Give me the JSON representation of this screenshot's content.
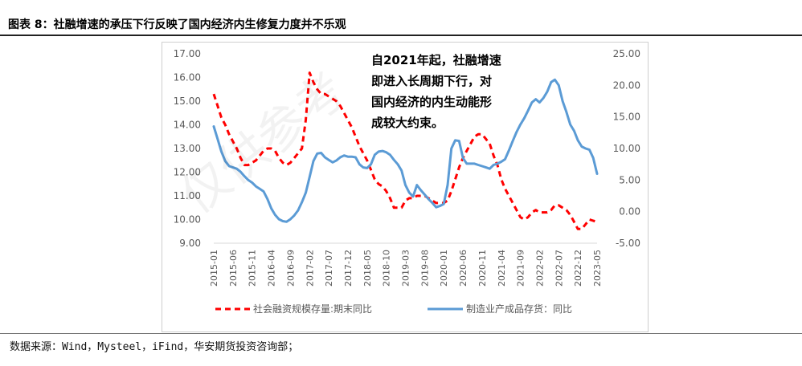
{
  "figure": {
    "title": "图表 8：社融增速的承压下行反映了国内经济内生修复力度并不乐观",
    "source": "数据来源：Wind，Mysteel，iFind，华安期货投资咨询部；",
    "watermark": "仅供参考"
  },
  "colors": {
    "series1": "#ff0000",
    "series2": "#5b9bd5",
    "axis_text": "#595959",
    "axis_line": "#d9d9d9"
  },
  "chart_data": {
    "type": "line",
    "title": "",
    "xlabel": "",
    "annotation": [
      "自2021年起，社融增速",
      "即进入长周期下行，对",
      "国内经济的内生动能形",
      "成较大约束。"
    ],
    "x_ticks": [
      "2015-01",
      "2015-06",
      "2015-11",
      "2016-04",
      "2016-09",
      "2017-02",
      "2017-07",
      "2017-12",
      "2018-05",
      "2018-10",
      "2019-03",
      "2019-08",
      "2020-01",
      "2020-06",
      "2020-11",
      "2021-04",
      "2021-09",
      "2022-02",
      "2022-07",
      "2022-12",
      "2023-05"
    ],
    "y_left": {
      "min": 9,
      "max": 17,
      "step": 1,
      "tick_labels": [
        "17.00",
        "16.00",
        "15.00",
        "14.00",
        "13.00",
        "12.00",
        "11.00",
        "10.00",
        "9.00"
      ]
    },
    "y_right": {
      "min": -5,
      "max": 25,
      "step": 5,
      "tick_labels": [
        "25.00",
        "20.00",
        "15.00",
        "10.00",
        "5.00",
        "0.00",
        "-5.00"
      ]
    },
    "legend_position": "bottom",
    "series": [
      {
        "name": "社会融资规模存量:期末同比",
        "axis": "left",
        "style": "dashed",
        "points": [
          [
            "2015-01",
            15.3
          ],
          [
            "2015-02",
            14.8
          ],
          [
            "2015-03",
            14.3
          ],
          [
            "2015-04",
            14.0
          ],
          [
            "2015-05",
            13.6
          ],
          [
            "2015-06",
            13.3
          ],
          [
            "2015-07",
            13.0
          ],
          [
            "2015-08",
            12.6
          ],
          [
            "2015-09",
            12.3
          ],
          [
            "2015-10",
            12.3
          ],
          [
            "2015-11",
            12.4
          ],
          [
            "2015-12",
            12.5
          ],
          [
            "2016-01",
            12.7
          ],
          [
            "2016-02",
            12.9
          ],
          [
            "2016-03",
            13.0
          ],
          [
            "2016-04",
            13.0
          ],
          [
            "2016-05",
            12.9
          ],
          [
            "2016-06",
            12.6
          ],
          [
            "2016-07",
            12.4
          ],
          [
            "2016-08",
            12.3
          ],
          [
            "2016-09",
            12.4
          ],
          [
            "2016-10",
            12.6
          ],
          [
            "2016-11",
            12.8
          ],
          [
            "2016-12",
            13.0
          ],
          [
            "2017-01",
            14.2
          ],
          [
            "2017-02",
            16.2
          ],
          [
            "2017-03",
            15.8
          ],
          [
            "2017-04",
            15.5
          ],
          [
            "2017-05",
            15.3
          ],
          [
            "2017-06",
            15.3
          ],
          [
            "2017-07",
            15.2
          ],
          [
            "2017-08",
            15.1
          ],
          [
            "2017-09",
            15.0
          ],
          [
            "2017-10",
            14.8
          ],
          [
            "2017-11",
            14.5
          ],
          [
            "2017-12",
            14.2
          ],
          [
            "2018-01",
            13.9
          ],
          [
            "2018-02",
            13.5
          ],
          [
            "2018-03",
            13.1
          ],
          [
            "2018-04",
            12.8
          ],
          [
            "2018-05",
            12.5
          ],
          [
            "2018-06",
            12.1
          ],
          [
            "2018-07",
            11.7
          ],
          [
            "2018-08",
            11.5
          ],
          [
            "2018-09",
            11.4
          ],
          [
            "2018-10",
            11.2
          ],
          [
            "2018-11",
            10.9
          ],
          [
            "2018-12",
            10.5
          ],
          [
            "2019-01",
            10.5
          ],
          [
            "2019-02",
            10.5
          ],
          [
            "2019-03",
            10.8
          ],
          [
            "2019-04",
            10.9
          ],
          [
            "2019-05",
            10.9
          ],
          [
            "2019-06",
            11.0
          ],
          [
            "2019-07",
            11.0
          ],
          [
            "2019-08",
            11.0
          ],
          [
            "2019-09",
            10.9
          ],
          [
            "2019-10",
            10.8
          ],
          [
            "2019-11",
            10.7
          ],
          [
            "2019-12",
            10.7
          ],
          [
            "2020-01",
            10.7
          ],
          [
            "2020-02",
            10.8
          ],
          [
            "2020-03",
            11.2
          ],
          [
            "2020-04",
            11.7
          ],
          [
            "2020-05",
            12.2
          ],
          [
            "2020-06",
            12.6
          ],
          [
            "2020-07",
            12.9
          ],
          [
            "2020-08",
            13.2
          ],
          [
            "2020-09",
            13.5
          ],
          [
            "2020-10",
            13.6
          ],
          [
            "2020-11",
            13.6
          ],
          [
            "2020-12",
            13.4
          ],
          [
            "2021-01",
            13.2
          ],
          [
            "2021-02",
            12.7
          ],
          [
            "2021-03",
            12.3
          ],
          [
            "2021-04",
            11.7
          ],
          [
            "2021-05",
            11.3
          ],
          [
            "2021-06",
            11.0
          ],
          [
            "2021-07",
            10.7
          ],
          [
            "2021-08",
            10.4
          ],
          [
            "2021-09",
            10.1
          ],
          [
            "2021-10",
            10.0
          ],
          [
            "2021-11",
            10.1
          ],
          [
            "2021-12",
            10.3
          ],
          [
            "2022-01",
            10.4
          ],
          [
            "2022-02",
            10.3
          ],
          [
            "2022-03",
            10.3
          ],
          [
            "2022-04",
            10.3
          ],
          [
            "2022-05",
            10.4
          ],
          [
            "2022-06",
            10.6
          ],
          [
            "2022-07",
            10.6
          ],
          [
            "2022-08",
            10.5
          ],
          [
            "2022-09",
            10.4
          ],
          [
            "2022-10",
            10.2
          ],
          [
            "2022-11",
            9.9
          ],
          [
            "2022-12",
            9.6
          ],
          [
            "2023-01",
            9.6
          ],
          [
            "2023-02",
            9.8
          ],
          [
            "2023-03",
            10.0
          ],
          [
            "2023-04",
            9.95
          ],
          [
            "2023-05",
            9.9
          ]
        ]
      },
      {
        "name": "制造业产成品存货：同比",
        "axis": "right",
        "style": "solid",
        "points": [
          [
            "2015-01",
            13.5
          ],
          [
            "2015-02",
            11.5
          ],
          [
            "2015-03",
            9.5
          ],
          [
            "2015-04",
            8.0
          ],
          [
            "2015-05",
            7.2
          ],
          [
            "2015-06",
            7.0
          ],
          [
            "2015-07",
            6.8
          ],
          [
            "2015-08",
            6.3
          ],
          [
            "2015-09",
            5.6
          ],
          [
            "2015-10",
            5.0
          ],
          [
            "2015-11",
            4.6
          ],
          [
            "2015-12",
            4.0
          ],
          [
            "2016-01",
            3.6
          ],
          [
            "2016-02",
            3.2
          ],
          [
            "2016-03",
            2.0
          ],
          [
            "2016-04",
            0.5
          ],
          [
            "2016-05",
            -0.5
          ],
          [
            "2016-06",
            -1.2
          ],
          [
            "2016-07",
            -1.5
          ],
          [
            "2016-08",
            -1.6
          ],
          [
            "2016-09",
            -1.2
          ],
          [
            "2016-10",
            -0.6
          ],
          [
            "2016-11",
            0.2
          ],
          [
            "2016-12",
            1.5
          ],
          [
            "2017-01",
            3.0
          ],
          [
            "2017-02",
            5.5
          ],
          [
            "2017-03",
            8.0
          ],
          [
            "2017-04",
            9.2
          ],
          [
            "2017-05",
            9.3
          ],
          [
            "2017-06",
            8.6
          ],
          [
            "2017-07",
            8.2
          ],
          [
            "2017-08",
            7.8
          ],
          [
            "2017-09",
            8.1
          ],
          [
            "2017-10",
            8.6
          ],
          [
            "2017-11",
            8.9
          ],
          [
            "2017-12",
            8.7
          ],
          [
            "2018-01",
            8.7
          ],
          [
            "2018-02",
            8.6
          ],
          [
            "2018-03",
            7.5
          ],
          [
            "2018-04",
            7.0
          ],
          [
            "2018-05",
            6.9
          ],
          [
            "2018-06",
            7.5
          ],
          [
            "2018-07",
            9.0
          ],
          [
            "2018-08",
            9.5
          ],
          [
            "2018-09",
            9.6
          ],
          [
            "2018-10",
            9.4
          ],
          [
            "2018-11",
            9.0
          ],
          [
            "2018-12",
            8.2
          ],
          [
            "2019-01",
            7.5
          ],
          [
            "2019-02",
            6.5
          ],
          [
            "2019-03",
            4.2
          ],
          [
            "2019-04",
            3.0
          ],
          [
            "2019-05",
            2.4
          ],
          [
            "2019-06",
            4.2
          ],
          [
            "2019-07",
            3.4
          ],
          [
            "2019-08",
            2.7
          ],
          [
            "2019-09",
            2.0
          ],
          [
            "2019-10",
            1.4
          ],
          [
            "2019-11",
            0.7
          ],
          [
            "2019-12",
            0.9
          ],
          [
            "2020-01",
            1.2
          ],
          [
            "2020-02",
            4.2
          ],
          [
            "2020-03",
            10.0
          ],
          [
            "2020-04",
            11.3
          ],
          [
            "2020-05",
            11.2
          ],
          [
            "2020-06",
            8.5
          ],
          [
            "2020-07",
            7.6
          ],
          [
            "2020-08",
            7.6
          ],
          [
            "2020-09",
            7.6
          ],
          [
            "2020-10",
            7.4
          ],
          [
            "2020-11",
            7.2
          ],
          [
            "2020-12",
            7.0
          ],
          [
            "2021-01",
            6.8
          ],
          [
            "2021-02",
            7.4
          ],
          [
            "2021-03",
            7.6
          ],
          [
            "2021-04",
            7.9
          ],
          [
            "2021-05",
            8.3
          ],
          [
            "2021-06",
            9.7
          ],
          [
            "2021-07",
            11.2
          ],
          [
            "2021-08",
            12.6
          ],
          [
            "2021-09",
            13.8
          ],
          [
            "2021-10",
            14.8
          ],
          [
            "2021-11",
            16.0
          ],
          [
            "2021-12",
            17.3
          ],
          [
            "2022-01",
            17.8
          ],
          [
            "2022-02",
            17.3
          ],
          [
            "2022-03",
            18.0
          ],
          [
            "2022-04",
            19.0
          ],
          [
            "2022-05",
            20.5
          ],
          [
            "2022-06",
            20.9
          ],
          [
            "2022-07",
            20.0
          ],
          [
            "2022-08",
            17.5
          ],
          [
            "2022-09",
            15.8
          ],
          [
            "2022-10",
            13.8
          ],
          [
            "2022-11",
            12.8
          ],
          [
            "2022-12",
            11.3
          ],
          [
            "2023-01",
            10.3
          ],
          [
            "2023-02",
            10.0
          ],
          [
            "2023-03",
            9.8
          ],
          [
            "2023-04",
            8.5
          ],
          [
            "2023-05",
            6.0
          ]
        ]
      }
    ]
  }
}
